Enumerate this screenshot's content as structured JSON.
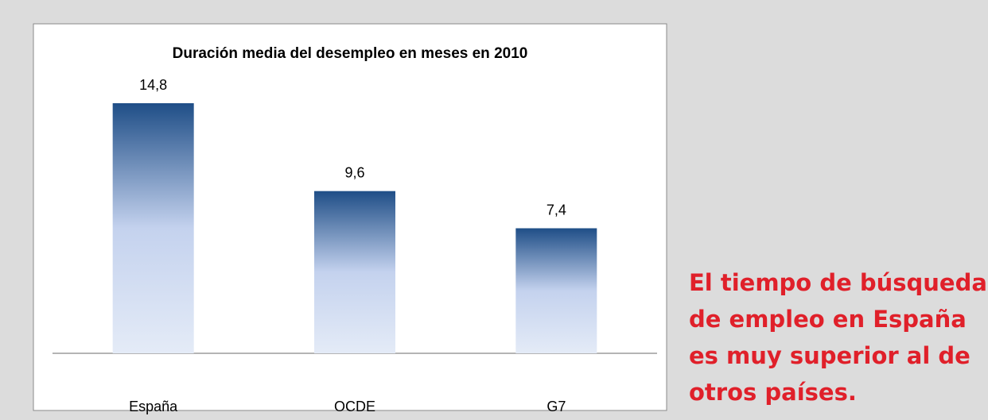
{
  "chart_data": {
    "type": "bar",
    "title": "Duración media del desempleo en meses en 2010",
    "categories": [
      "España",
      "OCDE",
      "G7"
    ],
    "values": [
      14.8,
      9.6,
      7.4
    ],
    "value_labels": [
      "14,8",
      "9,6",
      "7,4"
    ],
    "color": "#1f4e87",
    "annotation": [
      "El tiempo de búsqueda",
      "de empleo en España",
      "es muy superior al de",
      "otros países."
    ]
  }
}
